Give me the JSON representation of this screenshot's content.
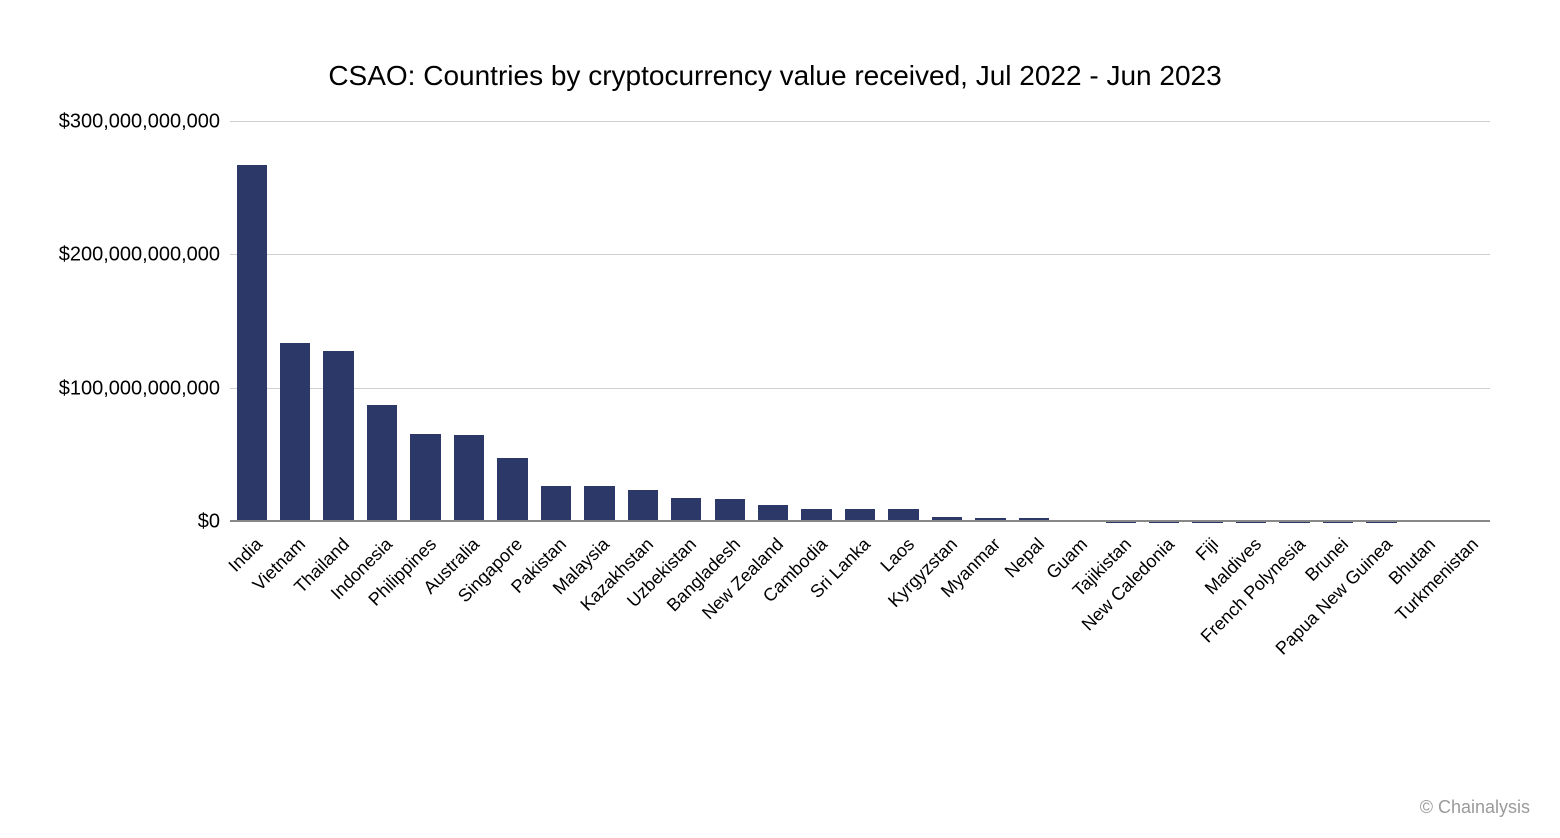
{
  "chart": {
    "type": "bar",
    "title": "CSAO: Countries by cryptocurrency value received, Jul 2022 - Jun 2023",
    "title_fontsize": 28,
    "bar_color": "#2c3968",
    "background_color": "#ffffff",
    "grid_color": "#d0d0d0",
    "axis_color": "#888888",
    "label_color": "#000000",
    "bar_width_ratio": 0.7,
    "ylim": [
      0,
      300000000000
    ],
    "yticks": [
      {
        "value": 0,
        "label": "$0"
      },
      {
        "value": 100000000000,
        "label": "$100,000,000,000"
      },
      {
        "value": 200000000000,
        "label": "$200,000,000,000"
      },
      {
        "value": 300000000000,
        "label": "$300,000,000,000"
      }
    ],
    "x_label_rotation_deg": -45,
    "x_label_fontsize": 18,
    "y_label_fontsize": 20,
    "categories": [
      "India",
      "Vietnam",
      "Thailand",
      "Indonesia",
      "Philippines",
      "Australia",
      "Singapore",
      "Pakistan",
      "Malaysia",
      "Kazakhstan",
      "Uzbekistan",
      "Bangladesh",
      "New Zealand",
      "Cambodia",
      "Sri Lanka",
      "Laos",
      "Kyrgyzstan",
      "Myanmar",
      "Nepal",
      "Guam",
      "Tajikistan",
      "New Caledonia",
      "Fiji",
      "Maldives",
      "French Polynesia",
      "Brunei",
      "Papua New Guinea",
      "Bhutan",
      "Turkmenistan"
    ],
    "values": [
      268000000000,
      134000000000,
      128000000000,
      88000000000,
      66000000000,
      65000000000,
      48000000000,
      27000000000,
      27000000000,
      24000000000,
      18000000000,
      17000000000,
      13000000000,
      10000000000,
      10000000000,
      10000000000,
      4000000000,
      3000000000,
      3000000000,
      500000000,
      300000000,
      200000000,
      150000000,
      120000000,
      100000000,
      80000000,
      60000000,
      40000000,
      20000000
    ]
  },
  "attribution": "© Chainalysis"
}
